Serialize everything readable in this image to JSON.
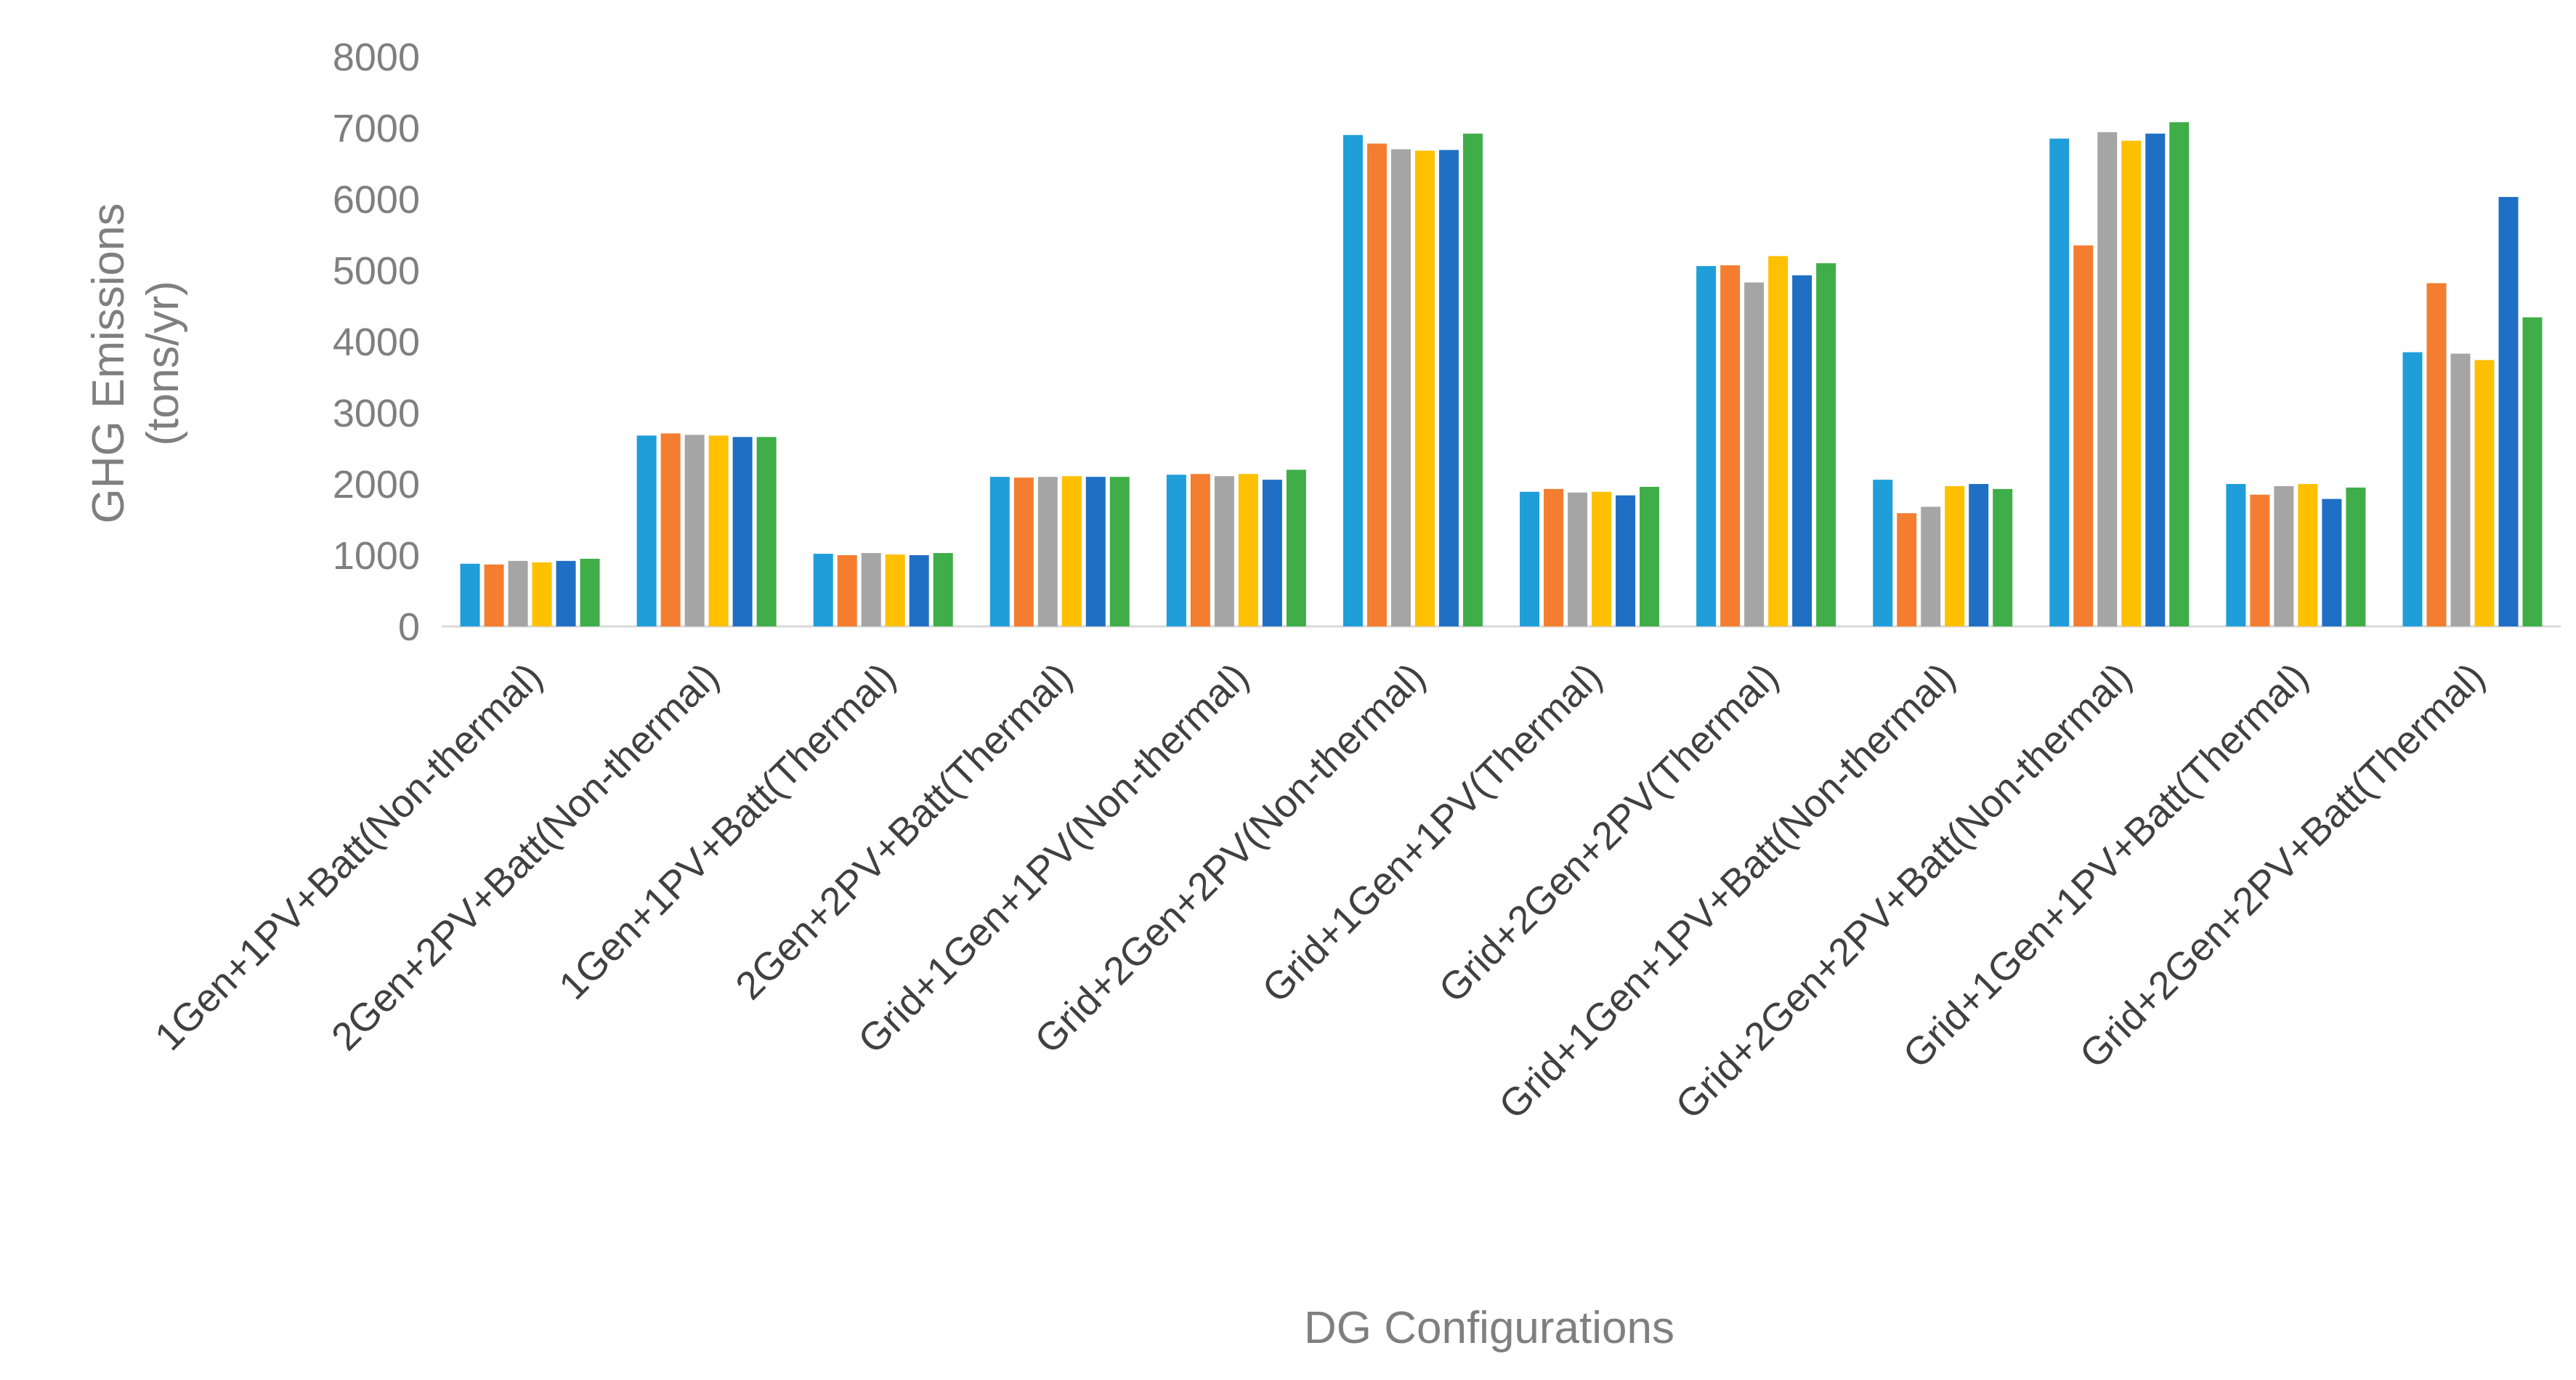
{
  "chart_data": {
    "type": "bar",
    "title": "",
    "xlabel": "DG Configurations",
    "ylabel_lines": [
      "GHG Emissions",
      "(tons/yr)"
    ],
    "ylim": [
      0,
      8000
    ],
    "yticks": [
      "0",
      "1000",
      "2000",
      "3000",
      "4000",
      "5000",
      "6000",
      "7000",
      "8000"
    ],
    "grid": false,
    "legend": "none",
    "categories": [
      "1Gen+1PV+Batt(Non-thermal)",
      "2Gen+2PV+Batt(Non-thermal)",
      "1Gen+1PV+Batt(Thermal)",
      "2Gen+2PV+Batt(Thermal)",
      "Grid+1Gen+1PV(Non-thermal)",
      "Grid+2Gen+2PV(Non-thermal)",
      "Grid+1Gen+1PV(Thermal)",
      "Grid+2Gen+2PV(Thermal)",
      "Grid+1Gen+1PV+Batt(Non-thermal)",
      "Grid+2Gen+2PV+Batt(Non-thermal)",
      "Grid+1Gen+1PV+Batt(Thermal)",
      "Grid+2Gen+2PV+Batt(Thermal)"
    ],
    "series": [
      {
        "color": "#1f9ed9",
        "values": [
          880,
          2680,
          1020,
          2100,
          2130,
          6900,
          1890,
          5060,
          2060,
          6850,
          2000,
          3850
        ]
      },
      {
        "color": "#f47d30",
        "values": [
          870,
          2710,
          1000,
          2090,
          2140,
          6780,
          1930,
          5070,
          1590,
          5350,
          1850,
          4820
        ]
      },
      {
        "color": "#a5a5a5",
        "values": [
          920,
          2690,
          1030,
          2100,
          2110,
          6700,
          1880,
          4830,
          1680,
          6940,
          1970,
          3830
        ]
      },
      {
        "color": "#ffc000",
        "values": [
          900,
          2680,
          1010,
          2110,
          2140,
          6680,
          1890,
          5200,
          1970,
          6820,
          2000,
          3740
        ]
      },
      {
        "color": "#1f6fc5",
        "values": [
          920,
          2660,
          1000,
          2100,
          2060,
          6690,
          1840,
          4930,
          2000,
          6920,
          1790,
          6030
        ]
      },
      {
        "color": "#3fae49",
        "values": [
          950,
          2660,
          1030,
          2100,
          2200,
          6920,
          1960,
          5100,
          1930,
          7080,
          1950,
          4340
        ]
      }
    ]
  }
}
